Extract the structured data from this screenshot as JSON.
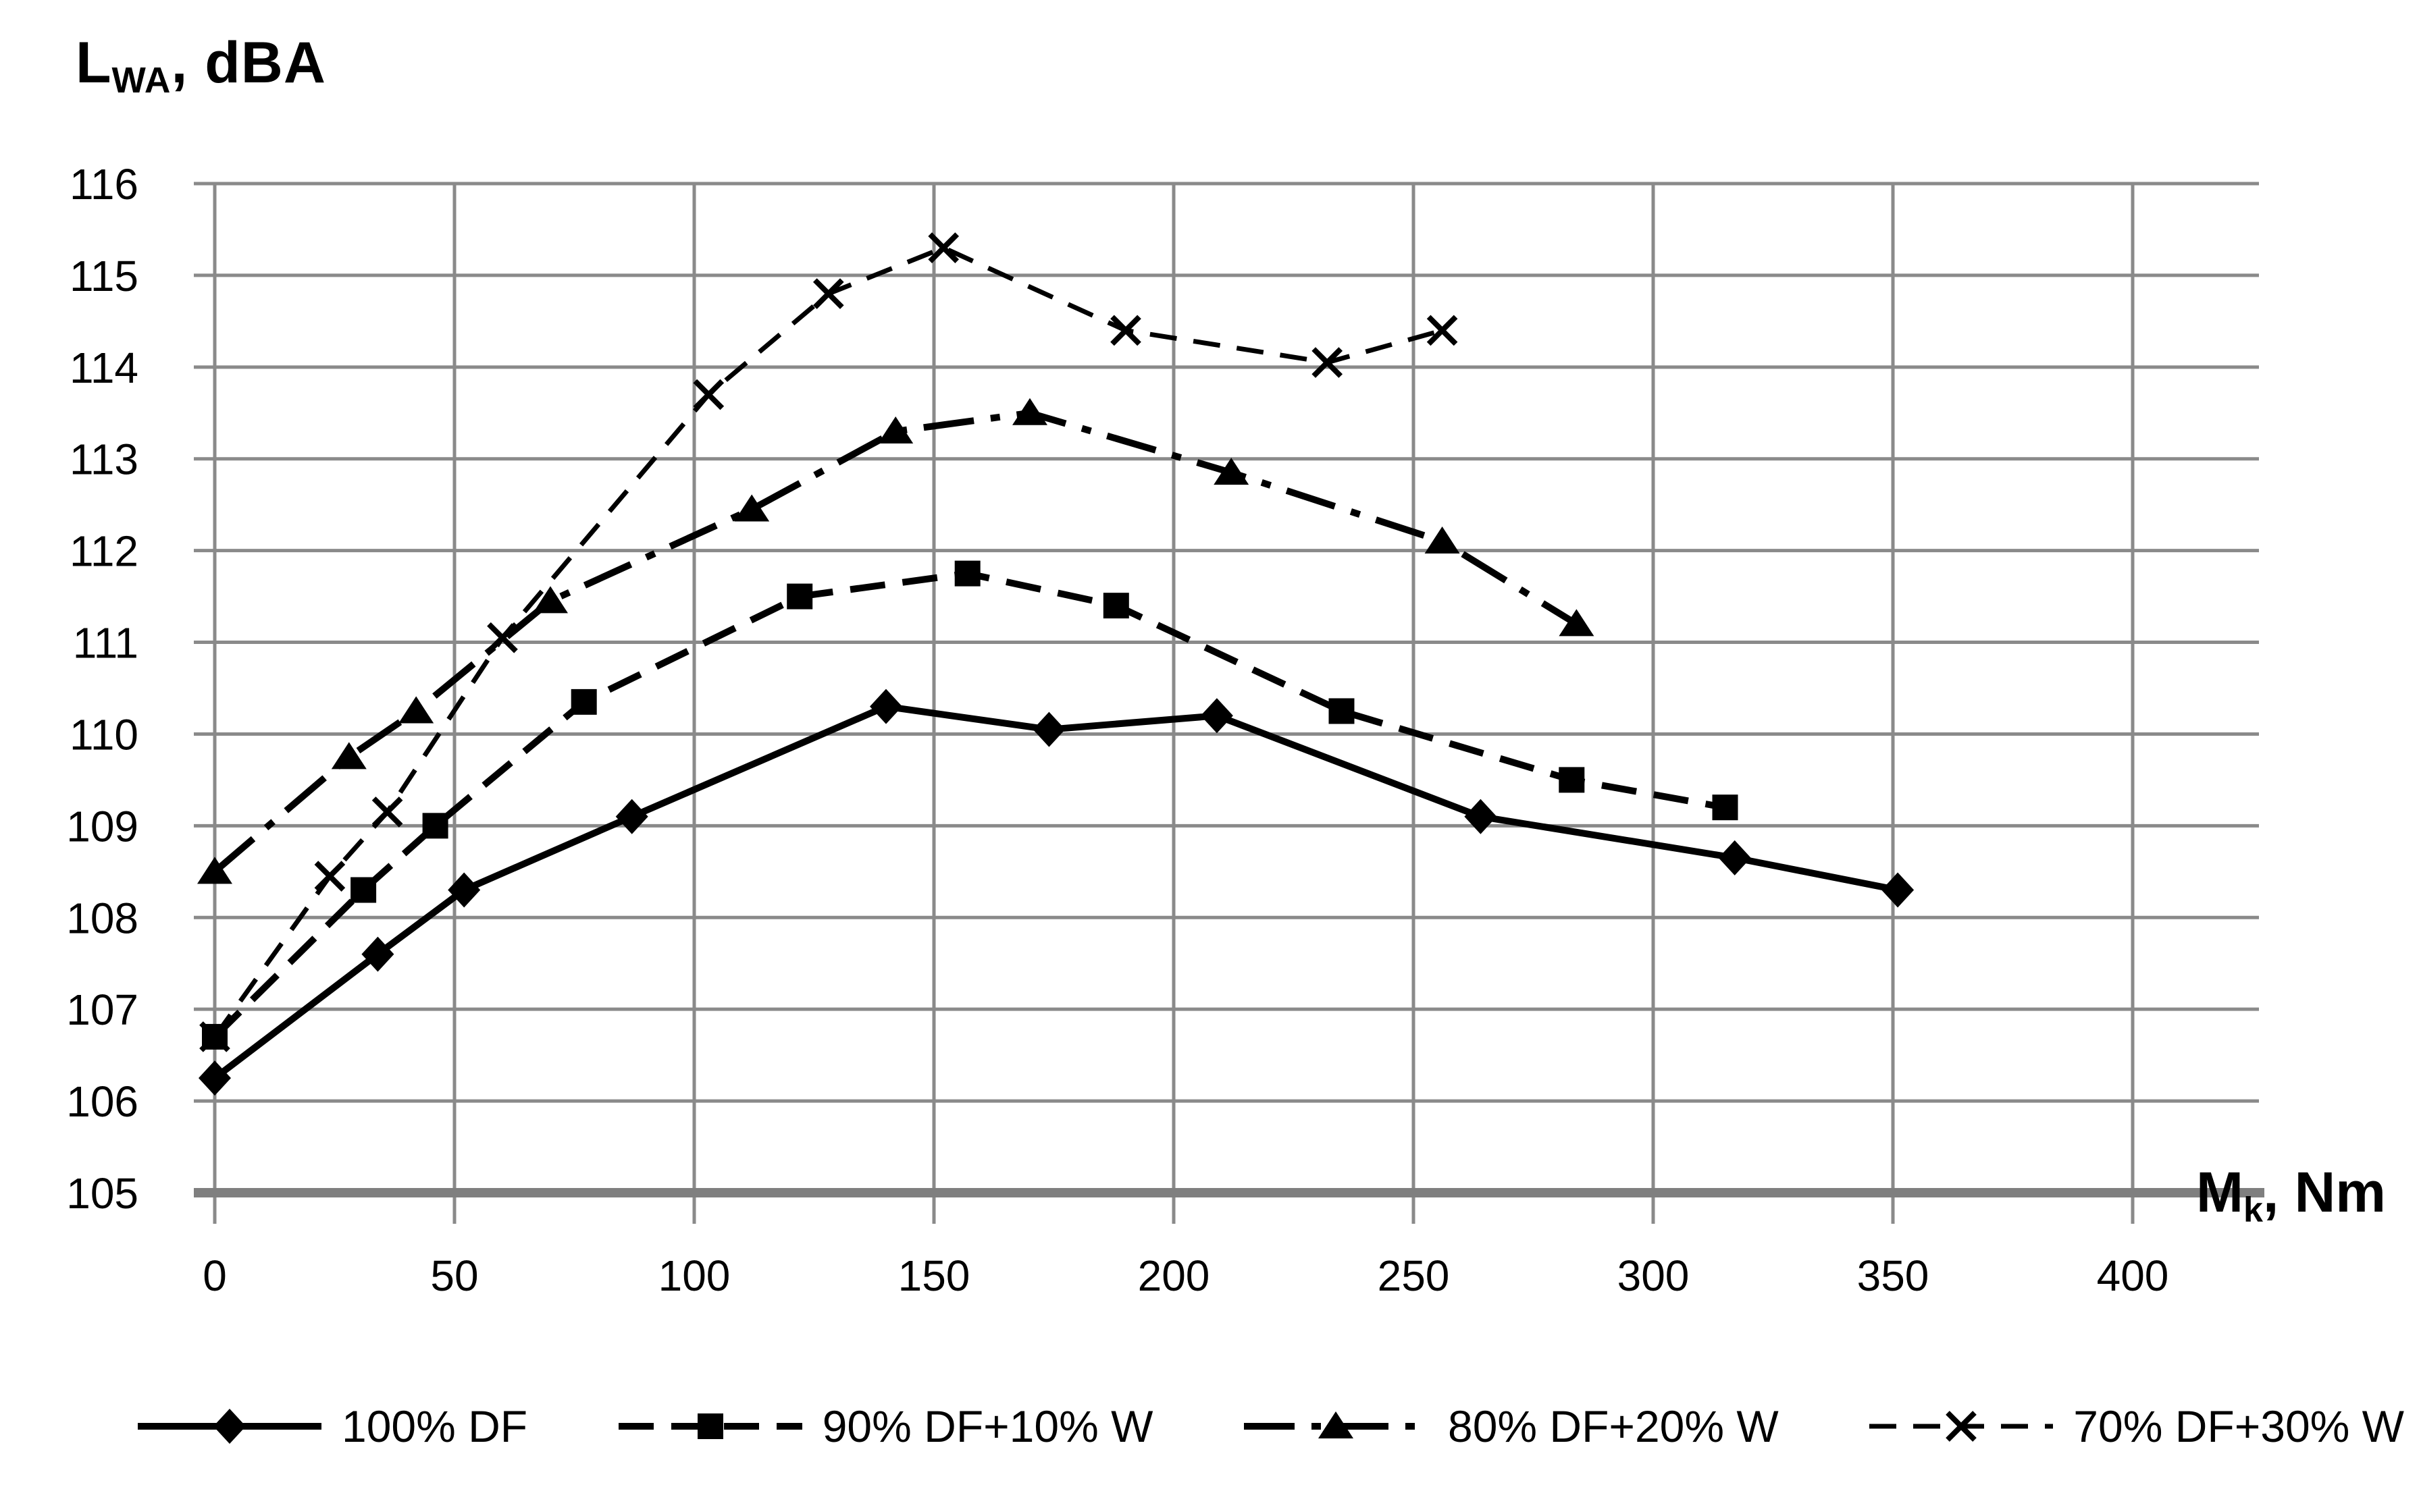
{
  "page": {
    "background": "#ffffff"
  },
  "chart": {
    "title": {
      "main": "L",
      "sub": "WA",
      "rest": ", dBA"
    },
    "x_axis_title": {
      "main": "M",
      "sub": "k",
      "rest": ", Nm"
    },
    "colors": {
      "series": "#000000",
      "gridline": "#8a8a8a",
      "axis": "#7f7f7f",
      "text": "#000000"
    }
  },
  "chart_data": {
    "type": "line",
    "title": "L_WA, dBA",
    "xlabel": "M_k, Nm",
    "ylabel": "L_WA, dBA",
    "xlim": [
      0,
      400
    ],
    "ylim": [
      105,
      116
    ],
    "x_ticks": [
      0,
      50,
      100,
      150,
      200,
      250,
      300,
      350,
      400
    ],
    "y_ticks": [
      105,
      106,
      107,
      108,
      109,
      110,
      111,
      112,
      113,
      114,
      115,
      116
    ],
    "grid": true,
    "legend_position": "bottom",
    "series": [
      {
        "name": "100% DF",
        "marker": "diamond",
        "line_style": "solid",
        "stroke_width": 10,
        "points": [
          [
            0,
            106.25
          ],
          [
            34,
            107.6
          ],
          [
            52,
            108.3
          ],
          [
            87,
            109.1
          ],
          [
            140,
            110.3
          ],
          [
            174,
            110.05
          ],
          [
            209,
            110.2
          ],
          [
            264,
            109.1
          ],
          [
            317,
            108.65
          ],
          [
            351,
            108.3
          ]
        ]
      },
      {
        "name": "90% DF+10% W",
        "marker": "square",
        "line_style": "dashed",
        "stroke_width": 10,
        "points": [
          [
            0,
            106.7
          ],
          [
            31,
            108.3
          ],
          [
            46,
            109.0
          ],
          [
            77,
            110.35
          ],
          [
            122,
            111.5
          ],
          [
            157,
            111.75
          ],
          [
            188,
            111.4
          ],
          [
            235,
            110.25
          ],
          [
            283,
            109.5
          ],
          [
            315,
            109.2
          ]
        ]
      },
      {
        "name": "80% DF+20% W",
        "marker": "triangle",
        "line_style": "dashdot",
        "stroke_width": 10,
        "points": [
          [
            0,
            108.5
          ],
          [
            28,
            109.75
          ],
          [
            42,
            110.25
          ],
          [
            70,
            111.45
          ],
          [
            112,
            112.45
          ],
          [
            142,
            113.3
          ],
          [
            170,
            113.5
          ],
          [
            212,
            112.85
          ],
          [
            256,
            112.1
          ],
          [
            284,
            111.2
          ]
        ]
      },
      {
        "name": "70% DF+30% W",
        "marker": "x",
        "line_style": "dashed-short",
        "stroke_width": 7,
        "points": [
          [
            0,
            106.7
          ],
          [
            24,
            108.45
          ],
          [
            36,
            109.15
          ],
          [
            60,
            111.05
          ],
          [
            103,
            113.7
          ],
          [
            128,
            114.8
          ],
          [
            152,
            115.3
          ],
          [
            190,
            114.4
          ],
          [
            232,
            114.05
          ],
          [
            256,
            114.4
          ]
        ]
      }
    ]
  }
}
